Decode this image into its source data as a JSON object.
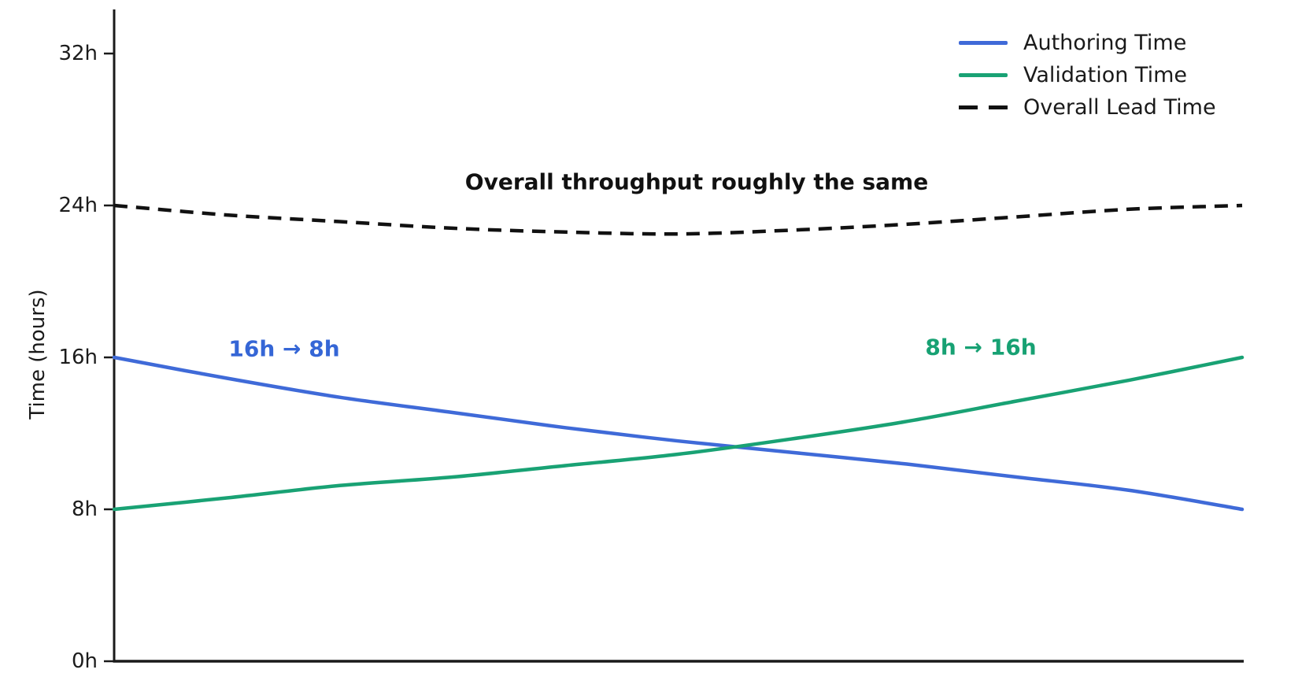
{
  "chart_data": {
    "type": "line",
    "ylabel": "Time (hours)",
    "ytick_labels": [
      "0h",
      "8h",
      "16h",
      "24h",
      "32h"
    ],
    "ytick_values": [
      0,
      8,
      16,
      24,
      32
    ],
    "ylim": [
      0,
      32
    ],
    "xlim": [
      0,
      10
    ],
    "x": [
      0,
      1,
      2,
      3,
      4,
      5,
      6,
      7,
      8,
      9,
      10
    ],
    "grid": false,
    "legend_position": "upper right",
    "axis_color": "#1a1a1a",
    "series": [
      {
        "name": "Authoring Time",
        "color": "#3f6ad8",
        "style": "solid",
        "values": [
          16.0,
          14.9,
          13.9,
          13.1,
          12.3,
          11.6,
          11.0,
          10.4,
          9.7,
          9.0,
          8.0
        ]
      },
      {
        "name": "Validation Time",
        "color": "#19a274",
        "style": "solid",
        "values": [
          8.0,
          8.6,
          9.25,
          9.7,
          10.3,
          10.9,
          11.7,
          12.6,
          13.7,
          14.8,
          16.0
        ]
      },
      {
        "name": "Overall Lead Time",
        "color": "#111111",
        "style": "dashed",
        "values": [
          24.0,
          23.5,
          23.15,
          22.8,
          22.6,
          22.5,
          22.7,
          23.0,
          23.4,
          23.8,
          24.0
        ]
      }
    ],
    "annotations": [
      {
        "text": "16h → 8h",
        "color": "#3566d6"
      },
      {
        "text": "8h → 16h",
        "color": "#17a173"
      },
      {
        "text": "Overall throughput roughly the same",
        "color": "#111111"
      }
    ]
  }
}
